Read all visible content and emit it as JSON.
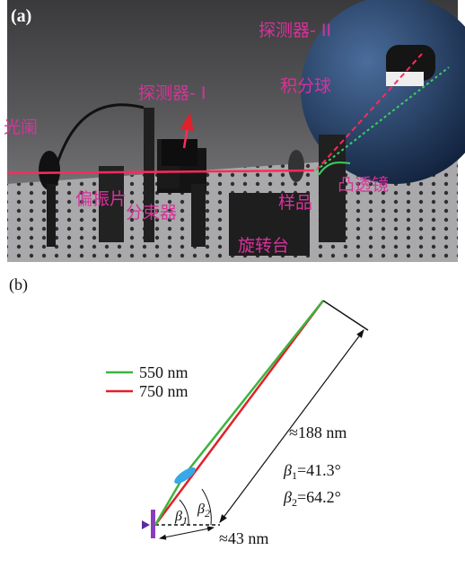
{
  "panel_a": {
    "label": "(a)",
    "labels": {
      "detector_2": "探测器- II",
      "sphere": "积分球",
      "detector_1": "探测器- I",
      "aperture": "光阑",
      "polarizer": "偏振片",
      "beam_splitter": "分束器",
      "sample": "样品",
      "lens": "凸透镜",
      "rotation_stage": "旋转台"
    }
  },
  "panel_b": {
    "label": "(b)",
    "legend": [
      {
        "name": "550 nm",
        "color": "#3cb43c"
      },
      {
        "name": "750 nm",
        "color": "#e0202a"
      }
    ],
    "long_distance": "≈188 nm",
    "short_distance": "≈43 nm",
    "angle_1": {
      "symbol": "β",
      "subscript": "1",
      "value": "=41.3°"
    },
    "angle_2": {
      "symbol": "β",
      "subscript": "2",
      "value": "=64.2°"
    }
  }
}
